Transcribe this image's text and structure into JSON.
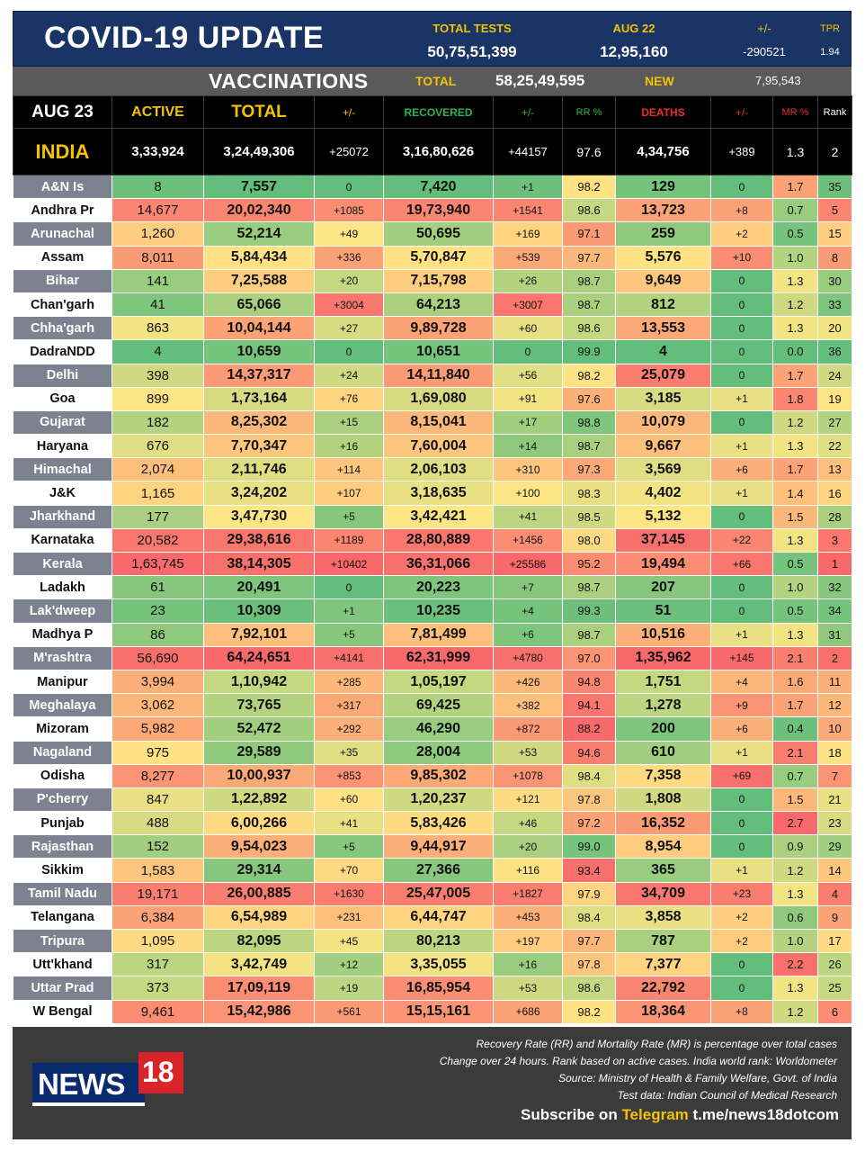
{
  "header": {
    "title": "COVID-19 UPDATE",
    "total_tests_label": "TOTAL TESTS",
    "total_tests": "50,75,51,399",
    "day_label": "AUG 22",
    "day_tests": "12,95,160",
    "change_label": "+/-",
    "change": "-290521",
    "tpr_label": "TPR",
    "tpr": "1.94"
  },
  "vaccinations": {
    "label": "VACCINATIONS",
    "total_label": "TOTAL",
    "total": "58,25,49,595",
    "new_label": "NEW",
    "new": "7,95,543"
  },
  "columns": [
    "AUG 23",
    "ACTIVE",
    "TOTAL",
    "+/-",
    "RECOVERED",
    "+/-",
    "RR %",
    "DEATHS",
    "+/-",
    "MR %",
    "Rank"
  ],
  "india": [
    "INDIA",
    "3,33,924",
    "3,24,49,306",
    "+25072",
    "3,16,80,626",
    "+44157",
    "97.6",
    "4,34,756",
    "+389",
    "1.3",
    "2"
  ],
  "rows": [
    [
      "A&N Is",
      "8",
      "7,557",
      "0",
      "7,420",
      "+1",
      "98.2",
      "129",
      "0",
      "1.7",
      "35"
    ],
    [
      "Andhra Pr",
      "14,677",
      "20,02,340",
      "+1085",
      "19,73,940",
      "+1541",
      "98.6",
      "13,723",
      "+8",
      "0.7",
      "5"
    ],
    [
      "Arunachal",
      "1,260",
      "52,214",
      "+49",
      "50,695",
      "+169",
      "97.1",
      "259",
      "+2",
      "0.5",
      "15"
    ],
    [
      "Assam",
      "8,011",
      "5,84,434",
      "+336",
      "5,70,847",
      "+539",
      "97.7",
      "5,576",
      "+10",
      "1.0",
      "8"
    ],
    [
      "Bihar",
      "141",
      "7,25,588",
      "+20",
      "7,15,798",
      "+26",
      "98.7",
      "9,649",
      "0",
      "1.3",
      "30"
    ],
    [
      "Chan'garh",
      "41",
      "65,066",
      "+3004",
      "64,213",
      "+3007",
      "98.7",
      "812",
      "0",
      "1.2",
      "33"
    ],
    [
      "Chha'garh",
      "863",
      "10,04,144",
      "+27",
      "9,89,728",
      "+60",
      "98.6",
      "13,553",
      "0",
      "1.3",
      "20"
    ],
    [
      "DadraNDD",
      "4",
      "10,659",
      "0",
      "10,651",
      "0",
      "99.9",
      "4",
      "0",
      "0.0",
      "36"
    ],
    [
      "Delhi",
      "398",
      "14,37,317",
      "+24",
      "14,11,840",
      "+56",
      "98.2",
      "25,079",
      "0",
      "1.7",
      "24"
    ],
    [
      "Goa",
      "899",
      "1,73,164",
      "+76",
      "1,69,080",
      "+91",
      "97.6",
      "3,185",
      "+1",
      "1.8",
      "19"
    ],
    [
      "Gujarat",
      "182",
      "8,25,302",
      "+15",
      "8,15,041",
      "+17",
      "98.8",
      "10,079",
      "0",
      "1.2",
      "27"
    ],
    [
      "Haryana",
      "676",
      "7,70,347",
      "+16",
      "7,60,004",
      "+14",
      "98.7",
      "9,667",
      "+1",
      "1.3",
      "22"
    ],
    [
      "Himachal",
      "2,074",
      "2,11,746",
      "+114",
      "2,06,103",
      "+310",
      "97.3",
      "3,569",
      "+6",
      "1.7",
      "13"
    ],
    [
      "J&K",
      "1,165",
      "3,24,202",
      "+107",
      "3,18,635",
      "+100",
      "98.3",
      "4,402",
      "+1",
      "1.4",
      "16"
    ],
    [
      "Jharkhand",
      "177",
      "3,47,730",
      "+5",
      "3,42,421",
      "+41",
      "98.5",
      "5,132",
      "0",
      "1.5",
      "28"
    ],
    [
      "Karnataka",
      "20,582",
      "29,38,616",
      "+1189",
      "28,80,889",
      "+1456",
      "98.0",
      "37,145",
      "+22",
      "1.3",
      "3"
    ],
    [
      "Kerala",
      "1,63,745",
      "38,14,305",
      "+10402",
      "36,31,066",
      "+25586",
      "95.2",
      "19,494",
      "+66",
      "0.5",
      "1"
    ],
    [
      "Ladakh",
      "61",
      "20,491",
      "0",
      "20,223",
      "+7",
      "98.7",
      "207",
      "0",
      "1.0",
      "32"
    ],
    [
      "Lak'dweep",
      "23",
      "10,309",
      "+1",
      "10,235",
      "+4",
      "99.3",
      "51",
      "0",
      "0.5",
      "34"
    ],
    [
      "Madhya P",
      "86",
      "7,92,101",
      "+5",
      "7,81,499",
      "+6",
      "98.7",
      "10,516",
      "+1",
      "1.3",
      "31"
    ],
    [
      "M'rashtra",
      "56,690",
      "64,24,651",
      "+4141",
      "62,31,999",
      "+4780",
      "97.0",
      "1,35,962",
      "+145",
      "2.1",
      "2"
    ],
    [
      "Manipur",
      "3,994",
      "1,10,942",
      "+285",
      "1,05,197",
      "+426",
      "94.8",
      "1,751",
      "+4",
      "1.6",
      "11"
    ],
    [
      "Meghalaya",
      "3,062",
      "73,765",
      "+317",
      "69,425",
      "+382",
      "94.1",
      "1,278",
      "+9",
      "1.7",
      "12"
    ],
    [
      "Mizoram",
      "5,982",
      "52,472",
      "+292",
      "46,290",
      "+872",
      "88.2",
      "200",
      "+6",
      "0.4",
      "10"
    ],
    [
      "Nagaland",
      "975",
      "29,589",
      "+35",
      "28,004",
      "+53",
      "94.6",
      "610",
      "+1",
      "2.1",
      "18"
    ],
    [
      "Odisha",
      "8,277",
      "10,00,937",
      "+853",
      "9,85,302",
      "+1078",
      "98.4",
      "7,358",
      "+69",
      "0.7",
      "7"
    ],
    [
      "P'cherry",
      "847",
      "1,22,892",
      "+60",
      "1,20,237",
      "+121",
      "97.8",
      "1,808",
      "0",
      "1.5",
      "21"
    ],
    [
      "Punjab",
      "488",
      "6,00,266",
      "+41",
      "5,83,426",
      "+46",
      "97.2",
      "16,352",
      "0",
      "2.7",
      "23"
    ],
    [
      "Rajasthan",
      "152",
      "9,54,023",
      "+5",
      "9,44,917",
      "+20",
      "99.0",
      "8,954",
      "0",
      "0.9",
      "29"
    ],
    [
      "Sikkim",
      "1,583",
      "29,314",
      "+70",
      "27,366",
      "+116",
      "93.4",
      "365",
      "+1",
      "1.2",
      "14"
    ],
    [
      "Tamil Nadu",
      "19,171",
      "26,00,885",
      "+1630",
      "25,47,005",
      "+1827",
      "97.9",
      "34,709",
      "+23",
      "1.3",
      "4"
    ],
    [
      "Telangana",
      "6,384",
      "6,54,989",
      "+231",
      "6,44,747",
      "+453",
      "98.4",
      "3,858",
      "+2",
      "0.6",
      "9"
    ],
    [
      "Tripura",
      "1,095",
      "82,095",
      "+45",
      "80,213",
      "+197",
      "97.7",
      "787",
      "+2",
      "1.0",
      "17"
    ],
    [
      "Utt'khand",
      "317",
      "3,42,749",
      "+12",
      "3,35,055",
      "+16",
      "97.8",
      "7,377",
      "0",
      "2.2",
      "26"
    ],
    [
      "Uttar Prad",
      "373",
      "17,09,119",
      "+19",
      "16,85,954",
      "+53",
      "98.6",
      "22,792",
      "0",
      "1.3",
      "25"
    ],
    [
      "W Bengal",
      "9,461",
      "15,42,986",
      "+561",
      "15,15,161",
      "+686",
      "98.2",
      "18,364",
      "+8",
      "1.2",
      "6"
    ]
  ],
  "colors": {
    "header_blue": "#1b3466",
    "accent_yellow": "#f2c300",
    "recovered_green": "#2fb34a",
    "deaths_red": "#e8312a",
    "grey_band": "#5a5a5a"
  },
  "footer": {
    "logo_text": "NEWS",
    "logo_number": "18",
    "notes": [
      "Recovery Rate (RR) and Mortality Rate (MR) is percentage over total cases",
      "Change over 24 hours. Rank based on active cases. India world rank: Worldometer",
      "Source: Ministry of Health & Family Welfare, Govt. of India",
      "Test data: Indian Council of Medical Research"
    ],
    "subscribe_prefix": "Subscribe on",
    "subscribe_brand": "Telegram",
    "subscribe_link": "t.me/news18dotcom"
  }
}
